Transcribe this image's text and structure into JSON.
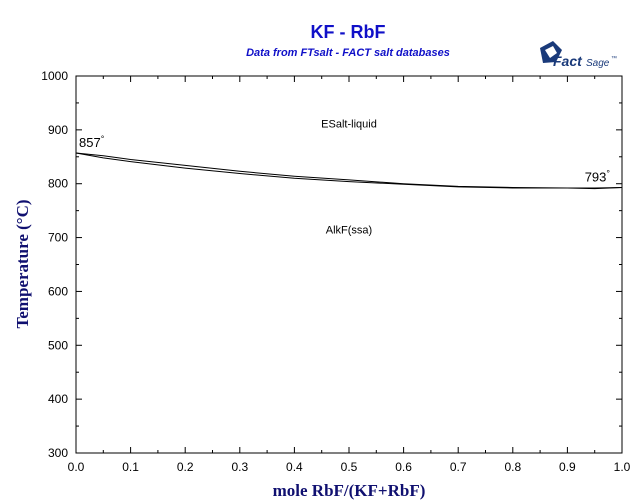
{
  "chart_data": {
    "type": "line",
    "title": "KF - RbF",
    "subtitle": "Data from FTsalt - FACT salt databases",
    "xlabel": "mole RbF/(KF+RbF)",
    "ylabel": "Temperature (°C)",
    "xlim": [
      0,
      1
    ],
    "ylim": [
      300,
      1000
    ],
    "x_ticks": [
      "0.0",
      "0.1",
      "0.2",
      "0.3",
      "0.4",
      "0.5",
      "0.6",
      "0.7",
      "0.8",
      "0.9",
      "1.0"
    ],
    "y_ticks": [
      "300",
      "400",
      "500",
      "600",
      "700",
      "800",
      "900",
      "1000"
    ],
    "grid": false,
    "series": [
      {
        "x": [
          0,
          0.05,
          0.1,
          0.2,
          0.3,
          0.4,
          0.5,
          0.6,
          0.7,
          0.8,
          0.9,
          0.95,
          1.0
        ],
        "y": [
          857,
          852,
          845,
          834,
          823,
          814,
          807,
          800,
          795,
          793,
          792,
          792,
          793
        ]
      },
      {
        "x": [
          0,
          0.05,
          0.1,
          0.2,
          0.3,
          0.4,
          0.5,
          0.6,
          0.7,
          0.8,
          0.9,
          0.95,
          1.0
        ],
        "y": [
          857,
          848,
          841,
          829,
          819,
          810,
          804,
          799,
          794,
          792,
          792,
          791,
          793
        ]
      }
    ],
    "annotations": [
      {
        "text": "ESalt-liquid",
        "x": 0.5,
        "y": 904
      },
      {
        "text": "AlkF(ssa)",
        "x": 0.5,
        "y": 708
      },
      {
        "text": "857",
        "degree": "°",
        "x": 0.0,
        "y": 857
      },
      {
        "text": "793",
        "degree": "°",
        "x": 1.0,
        "y": 793
      }
    ]
  },
  "logo": {
    "part1": "Fact",
    "part2": "Sage",
    "mark": "™"
  }
}
